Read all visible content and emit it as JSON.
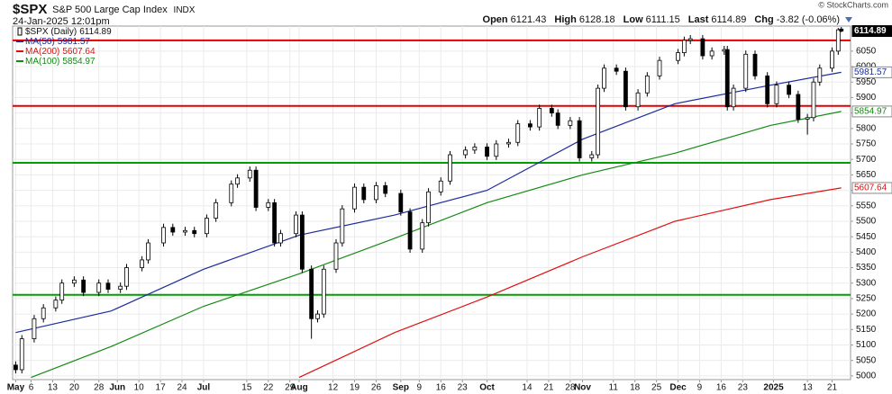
{
  "chart_data": {
    "type": "candlestick",
    "title": "$SPX",
    "subtitle": "S&P 500 Large Cap Index",
    "exchange": "INDX",
    "date_label": "24-Jan-2025 12:01pm",
    "copyright": "© StockCharts.com",
    "quote_labels": [
      "Open",
      "High",
      "Low",
      "Last",
      "Chg"
    ],
    "change": -3.82,
    "change_label": "(-0.06%)",
    "name": "$SPX (Daily)",
    "x": [
      "2024-05-01",
      "2024-05-03",
      "2024-05-07",
      "2024-05-10",
      "2024-05-14",
      "2024-05-16",
      "2024-05-20",
      "2024-05-23",
      "2024-05-28",
      "2024-05-31",
      "2024-06-04",
      "2024-06-06",
      "2024-06-11",
      "2024-06-13",
      "2024-06-18",
      "2024-06-21",
      "2024-06-25",
      "2024-06-28",
      "2024-07-02",
      "2024-07-05",
      "2024-07-10",
      "2024-07-12",
      "2024-07-16",
      "2024-07-18",
      "2024-07-22",
      "2024-07-24",
      "2024-07-26",
      "2024-07-31",
      "2024-08-02",
      "2024-08-05",
      "2024-08-07",
      "2024-08-09",
      "2024-08-13",
      "2024-08-15",
      "2024-08-19",
      "2024-08-22",
      "2024-08-26",
      "2024-08-29",
      "2024-09-03",
      "2024-09-06",
      "2024-09-10",
      "2024-09-12",
      "2024-09-16",
      "2024-09-19",
      "2024-09-24",
      "2024-09-27",
      "2024-10-01",
      "2024-10-04",
      "2024-10-08",
      "2024-10-11",
      "2024-10-15",
      "2024-10-18",
      "2024-10-22",
      "2024-10-24",
      "2024-10-28",
      "2024-10-31",
      "2024-11-04",
      "2024-11-06",
      "2024-11-08",
      "2024-11-12",
      "2024-11-15",
      "2024-11-19",
      "2024-11-22",
      "2024-11-26",
      "2024-12-02",
      "2024-12-04",
      "2024-12-06",
      "2024-12-10",
      "2024-12-13",
      "2024-12-17",
      "2024-12-18",
      "2024-12-20",
      "2024-12-24",
      "2024-12-27",
      "2024-12-31",
      "2025-01-03",
      "2025-01-07",
      "2025-01-10",
      "2025-01-13",
      "2025-01-15",
      "2025-01-17",
      "2025-01-21",
      "2025-01-23",
      "2025-01-24"
    ],
    "open": [
      5035,
      5020,
      5120,
      5185,
      5220,
      5245,
      5300,
      5310,
      5270,
      5300,
      5280,
      5290,
      5350,
      5375,
      5430,
      5480,
      5465,
      5470,
      5460,
      5510,
      5560,
      5620,
      5640,
      5665,
      5545,
      5560,
      5430,
      5460,
      5520,
      5345,
      5185,
      5200,
      5345,
      5430,
      5540,
      5610,
      5570,
      5615,
      5590,
      5530,
      5410,
      5495,
      5595,
      5630,
      5715,
      5730,
      5740,
      5710,
      5750,
      5755,
      5815,
      5805,
      5865,
      5850,
      5810,
      5825,
      5705,
      5715,
      5930,
      5995,
      5985,
      5870,
      5915,
      5970,
      6020,
      6045,
      6085,
      6090,
      6035,
      6050,
      6055,
      5870,
      5930,
      6040,
      5970,
      5880,
      5940,
      5910,
      5830,
      5835,
      5950,
      5995,
      6050,
      6121.43
    ],
    "high": [
      5047,
      5132,
      5197,
      5232,
      5257,
      5312,
      5322,
      5322,
      5312,
      5312,
      5302,
      5362,
      5387,
      5442,
      5492,
      5492,
      5482,
      5482,
      5522,
      5572,
      5632,
      5652,
      5677,
      5677,
      5572,
      5572,
      5472,
      5532,
      5532,
      5357,
      5212,
      5357,
      5442,
      5552,
      5622,
      5622,
      5627,
      5627,
      5602,
      5542,
      5507,
      5607,
      5642,
      5727,
      5742,
      5752,
      5752,
      5762,
      5767,
      5827,
      5827,
      5877,
      5877,
      5862,
      5837,
      5837,
      5727,
      5942,
      6007,
      6007,
      5997,
      5927,
      5982,
      6032,
      6057,
      6097,
      6102,
      6102,
      6062,
      6067,
      6067,
      5942,
      6052,
      6052,
      5982,
      5952,
      5952,
      5922,
      5847,
      5962,
      6007,
      6062,
      6125,
      6128.18
    ],
    "low": [
      5008,
      5008,
      5108,
      5173,
      5208,
      5233,
      5288,
      5258,
      5258,
      5268,
      5268,
      5278,
      5338,
      5363,
      5418,
      5453,
      5453,
      5448,
      5448,
      5498,
      5548,
      5608,
      5628,
      5533,
      5533,
      5418,
      5418,
      5448,
      5333,
      5120,
      5173,
      5188,
      5333,
      5418,
      5528,
      5558,
      5558,
      5578,
      5518,
      5398,
      5398,
      5483,
      5583,
      5618,
      5703,
      5718,
      5698,
      5698,
      5738,
      5743,
      5793,
      5793,
      5838,
      5798,
      5798,
      5693,
      5693,
      5703,
      5918,
      5973,
      5858,
      5858,
      5903,
      5958,
      6008,
      6033,
      6073,
      6023,
      6023,
      6038,
      5858,
      5858,
      5918,
      5958,
      5868,
      5868,
      5898,
      5818,
      5780,
      5823,
      5938,
      5983,
      6038,
      6111.15
    ],
    "close": [
      5020,
      5120,
      5185,
      5220,
      5245,
      5300,
      5310,
      5270,
      5300,
      5280,
      5290,
      5350,
      5375,
      5430,
      5480,
      5465,
      5470,
      5460,
      5510,
      5560,
      5620,
      5640,
      5665,
      5545,
      5560,
      5430,
      5460,
      5520,
      5345,
      5185,
      5200,
      5345,
      5430,
      5540,
      5610,
      5570,
      5615,
      5590,
      5530,
      5410,
      5495,
      5595,
      5630,
      5715,
      5730,
      5740,
      5710,
      5750,
      5755,
      5815,
      5805,
      5865,
      5850,
      5810,
      5825,
      5705,
      5715,
      5930,
      5995,
      5985,
      5870,
      5915,
      5970,
      6020,
      6045,
      6085,
      6090,
      6035,
      6050,
      6055,
      5870,
      5930,
      6040,
      5970,
      5880,
      5940,
      5910,
      5830,
      5835,
      5950,
      5995,
      6050,
      6119,
      6114.89
    ],
    "series": [
      {
        "name": "MA(50)",
        "color": "#1c2c9c",
        "x": [
          "2024-05-01",
          "2024-06-01",
          "2024-07-01",
          "2024-08-01",
          "2024-09-01",
          "2024-10-01",
          "2024-11-01",
          "2024-12-01",
          "2025-01-01",
          "2025-01-24"
        ],
        "values": [
          5140,
          5210,
          5345,
          5455,
          5520,
          5600,
          5765,
          5880,
          5940,
          5981.57
        ]
      },
      {
        "name": "MA(200)",
        "color": "#e01010",
        "x": [
          "2024-08-01",
          "2024-09-01",
          "2024-10-01",
          "2024-11-01",
          "2024-12-01",
          "2025-01-01",
          "2025-01-24"
        ],
        "values": [
          4995,
          5140,
          5255,
          5385,
          5500,
          5570,
          5607.64
        ]
      },
      {
        "name": "MA(100)",
        "color": "#138a13",
        "x": [
          "2024-05-06",
          "2024-06-01",
          "2024-07-01",
          "2024-08-01",
          "2024-09-01",
          "2024-10-01",
          "2024-11-01",
          "2024-12-01",
          "2025-01-01",
          "2025-01-24"
        ],
        "values": [
          4995,
          5095,
          5225,
          5330,
          5445,
          5560,
          5650,
          5720,
          5810,
          5854.97
        ]
      }
    ],
    "hlines": [
      {
        "value": 6085,
        "color": "#e00000"
      },
      {
        "value": 5873,
        "color": "#e00000"
      },
      {
        "value": 5689,
        "color": "#00a000"
      },
      {
        "value": 5262,
        "color": "#00a000"
      }
    ],
    "xlim": [
      "2024-04-30",
      "2025-01-27"
    ],
    "ylim": [
      4988,
      6131
    ],
    "yticks": [
      5000,
      5050,
      5100,
      5150,
      5200,
      5250,
      5300,
      5350,
      5400,
      5450,
      5500,
      5550,
      5600,
      5650,
      5700,
      5750,
      5800,
      5850,
      5900,
      5950,
      6000,
      6050
    ],
    "xticks": [
      {
        "value": "2024-05-01",
        "label": "May"
      },
      {
        "value": "2024-05-06",
        "label": "6"
      },
      {
        "value": "2024-05-13",
        "label": "13"
      },
      {
        "value": "2024-05-20",
        "label": "20"
      },
      {
        "value": "2024-05-28",
        "label": "28"
      },
      {
        "value": "2024-06-03",
        "label": "Jun"
      },
      {
        "value": "2024-06-10",
        "label": "10"
      },
      {
        "value": "2024-06-17",
        "label": "17"
      },
      {
        "value": "2024-06-24",
        "label": "24"
      },
      {
        "value": "2024-07-01",
        "label": "Jul"
      },
      {
        "value": "2024-07-15",
        "label": "15"
      },
      {
        "value": "2024-07-22",
        "label": "22"
      },
      {
        "value": "2024-07-29",
        "label": "29"
      },
      {
        "value": "2024-08-01",
        "label": "Aug"
      },
      {
        "value": "2024-08-12",
        "label": "12"
      },
      {
        "value": "2024-08-19",
        "label": "19"
      },
      {
        "value": "2024-08-26",
        "label": "26"
      },
      {
        "value": "2024-09-03",
        "label": "Sep"
      },
      {
        "value": "2024-09-09",
        "label": "9"
      },
      {
        "value": "2024-09-16",
        "label": "16"
      },
      {
        "value": "2024-09-23",
        "label": "23"
      },
      {
        "value": "2024-10-01",
        "label": "Oct"
      },
      {
        "value": "2024-10-14",
        "label": "14"
      },
      {
        "value": "2024-10-21",
        "label": "21"
      },
      {
        "value": "2024-10-28",
        "label": "28"
      },
      {
        "value": "2024-11-01",
        "label": "Nov"
      },
      {
        "value": "2024-11-11",
        "label": "11"
      },
      {
        "value": "2024-11-18",
        "label": "18"
      },
      {
        "value": "2024-11-25",
        "label": "25"
      },
      {
        "value": "2024-12-02",
        "label": "Dec"
      },
      {
        "value": "2024-12-09",
        "label": "9"
      },
      {
        "value": "2024-12-16",
        "label": "16"
      },
      {
        "value": "2024-12-23",
        "label": "23"
      },
      {
        "value": "2025-01-02",
        "label": "2025"
      },
      {
        "value": "2025-01-13",
        "label": "13"
      },
      {
        "value": "2025-01-21",
        "label": "21"
      }
    ],
    "grid": true
  }
}
